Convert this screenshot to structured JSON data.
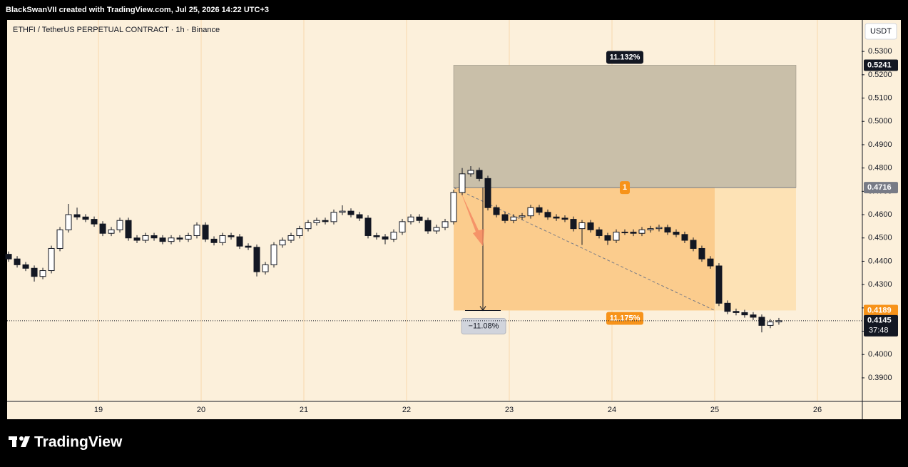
{
  "header": "BlackSwanVII created with TradingView.com, Jul 25, 2026 14:22 UTC+3",
  "brand": "TradingView",
  "chart_data": {
    "type": "candlestick",
    "title": "ETHFI / TetherUS PERPETUAL CONTRACT · 1h · Binance",
    "y_axis_unit": "USDT",
    "up_color": "#ffffff",
    "down_color": "#131722",
    "wick_color": "#131722",
    "xlim": [
      0.33,
      100.17
    ],
    "xticks": [
      {
        "value": 11,
        "label": "19"
      },
      {
        "value": 23,
        "label": "20"
      },
      {
        "value": 35,
        "label": "21"
      },
      {
        "value": 47,
        "label": "22"
      },
      {
        "value": 59,
        "label": "23"
      },
      {
        "value": 71,
        "label": "24"
      },
      {
        "value": 83,
        "label": "25"
      },
      {
        "value": 95,
        "label": "26"
      }
    ],
    "ylim": [
      0.3802,
      0.5435
    ],
    "yticks": [
      {
        "value": 0.53,
        "label": "0.5300"
      },
      {
        "value": 0.52,
        "label": "0.5200"
      },
      {
        "value": 0.51,
        "label": "0.5100"
      },
      {
        "value": 0.5,
        "label": "0.5000"
      },
      {
        "value": 0.49,
        "label": "0.4900"
      },
      {
        "value": 0.48,
        "label": "0.4800"
      },
      {
        "value": 0.47,
        "label": "0.4700"
      },
      {
        "value": 0.46,
        "label": "0.4600"
      },
      {
        "value": 0.45,
        "label": "0.4500"
      },
      {
        "value": 0.44,
        "label": "0.4400"
      },
      {
        "value": 0.43,
        "label": "0.4300"
      },
      {
        "value": 0.42,
        "label": "0.4200"
      },
      {
        "value": 0.41,
        "label": "0.4100"
      },
      {
        "value": 0.4,
        "label": "0.4000"
      },
      {
        "value": 0.39,
        "label": "0.3900"
      }
    ],
    "grid": true,
    "open": [
      0.443,
      0.441,
      0.4385,
      0.437,
      0.4335,
      0.436,
      0.4455,
      0.4535,
      0.46,
      0.459,
      0.458,
      0.456,
      0.452,
      0.4535,
      0.4575,
      0.45,
      0.449,
      0.451,
      0.45,
      0.4485,
      0.45,
      0.4495,
      0.451,
      0.4555,
      0.4495,
      0.448,
      0.451,
      0.4505,
      0.4465,
      0.446,
      0.4355,
      0.4385,
      0.447,
      0.449,
      0.451,
      0.454,
      0.4565,
      0.4575,
      0.457,
      0.461,
      0.4615,
      0.46,
      0.4585,
      0.451,
      0.4505,
      0.4495,
      0.4525,
      0.457,
      0.459,
      0.4575,
      0.453,
      0.4545,
      0.457,
      0.4695,
      0.4775,
      0.479,
      0.4755,
      0.463,
      0.46,
      0.4575,
      0.459,
      0.4595,
      0.463,
      0.461,
      0.459,
      0.4585,
      0.458,
      0.454,
      0.4565,
      0.4535,
      0.451,
      0.449,
      0.4525,
      0.4525,
      0.452,
      0.4535,
      0.454,
      0.4545,
      0.4525,
      0.4515,
      0.449,
      0.4455,
      0.441,
      0.438,
      0.422,
      0.4185,
      0.418,
      0.417,
      0.416,
      0.4125,
      0.414
    ],
    "high": [
      0.4442,
      0.4422,
      0.4397,
      0.4382,
      0.4372,
      0.4467,
      0.4547,
      0.4646,
      0.463,
      0.4602,
      0.4592,
      0.4572,
      0.4547,
      0.4587,
      0.4587,
      0.4512,
      0.4522,
      0.4522,
      0.4512,
      0.4512,
      0.4512,
      0.4522,
      0.4567,
      0.4567,
      0.4507,
      0.4522,
      0.4522,
      0.4517,
      0.4477,
      0.4472,
      0.4397,
      0.4482,
      0.4502,
      0.4522,
      0.4552,
      0.4577,
      0.4587,
      0.4587,
      0.4622,
      0.464,
      0.4627,
      0.4612,
      0.4597,
      0.4522,
      0.4517,
      0.4537,
      0.4582,
      0.4602,
      0.4602,
      0.4587,
      0.4557,
      0.4582,
      0.4707,
      0.48,
      0.4808,
      0.4802,
      0.4767,
      0.4642,
      0.4612,
      0.4602,
      0.4607,
      0.4642,
      0.4642,
      0.4622,
      0.4602,
      0.4597,
      0.4592,
      0.4577,
      0.4577,
      0.4547,
      0.4522,
      0.4537,
      0.4537,
      0.4537,
      0.4547,
      0.4552,
      0.4557,
      0.4557,
      0.4537,
      0.4527,
      0.4502,
      0.4467,
      0.4422,
      0.4392,
      0.4232,
      0.4197,
      0.4192,
      0.4182,
      0.4172,
      0.4152,
      0.4157
    ],
    "low": [
      0.4398,
      0.4373,
      0.4358,
      0.4313,
      0.4323,
      0.4348,
      0.4443,
      0.4523,
      0.4578,
      0.4568,
      0.4548,
      0.4508,
      0.4508,
      0.4523,
      0.4488,
      0.4478,
      0.4478,
      0.4488,
      0.4473,
      0.4473,
      0.4483,
      0.4483,
      0.4498,
      0.4483,
      0.4468,
      0.4468,
      0.4493,
      0.4453,
      0.4448,
      0.4335,
      0.4343,
      0.4373,
      0.4458,
      0.4478,
      0.4498,
      0.4528,
      0.4553,
      0.4558,
      0.4558,
      0.4598,
      0.4588,
      0.4573,
      0.4498,
      0.4493,
      0.4473,
      0.4483,
      0.4513,
      0.4558,
      0.4563,
      0.4518,
      0.4518,
      0.4533,
      0.4558,
      0.4683,
      0.4763,
      0.4743,
      0.4618,
      0.4588,
      0.4563,
      0.4563,
      0.4578,
      0.4583,
      0.4598,
      0.4578,
      0.4573,
      0.4568,
      0.4528,
      0.447,
      0.4523,
      0.4498,
      0.447,
      0.4478,
      0.4513,
      0.4508,
      0.4508,
      0.4523,
      0.4528,
      0.4513,
      0.4503,
      0.4478,
      0.4443,
      0.4398,
      0.4368,
      0.4208,
      0.4173,
      0.4168,
      0.4158,
      0.4148,
      0.4095,
      0.4113,
      0.4128
    ],
    "close": [
      0.441,
      0.4385,
      0.437,
      0.4335,
      0.436,
      0.4455,
      0.4535,
      0.46,
      0.459,
      0.458,
      0.456,
      0.452,
      0.4535,
      0.4575,
      0.45,
      0.449,
      0.451,
      0.45,
      0.4485,
      0.45,
      0.4495,
      0.451,
      0.4555,
      0.4495,
      0.448,
      0.451,
      0.4505,
      0.4465,
      0.446,
      0.4355,
      0.4385,
      0.447,
      0.449,
      0.451,
      0.454,
      0.4565,
      0.4575,
      0.457,
      0.461,
      0.4615,
      0.46,
      0.4585,
      0.451,
      0.4505,
      0.4495,
      0.4525,
      0.457,
      0.459,
      0.4575,
      0.453,
      0.4545,
      0.457,
      0.4695,
      0.4775,
      0.479,
      0.4755,
      0.463,
      0.46,
      0.4575,
      0.459,
      0.4595,
      0.463,
      0.461,
      0.459,
      0.4585,
      0.458,
      0.454,
      0.4565,
      0.4535,
      0.451,
      0.449,
      0.4525,
      0.4525,
      0.452,
      0.4535,
      0.454,
      0.4545,
      0.4525,
      0.4515,
      0.449,
      0.4455,
      0.441,
      0.438,
      0.422,
      0.4185,
      0.418,
      0.417,
      0.416,
      0.4125,
      0.414,
      0.4145
    ],
    "last_price": 0.4145,
    "countdown": "37:48",
    "position": {
      "entry": 0.4716,
      "stop": 0.5241,
      "target": 0.4189,
      "x_start": 52.5,
      "x_end": 92.5,
      "x_filled": 83,
      "entry_label": "1",
      "stop_label": "11.132%",
      "target_label": "11.175%"
    },
    "measure_label": "−11.08%"
  }
}
